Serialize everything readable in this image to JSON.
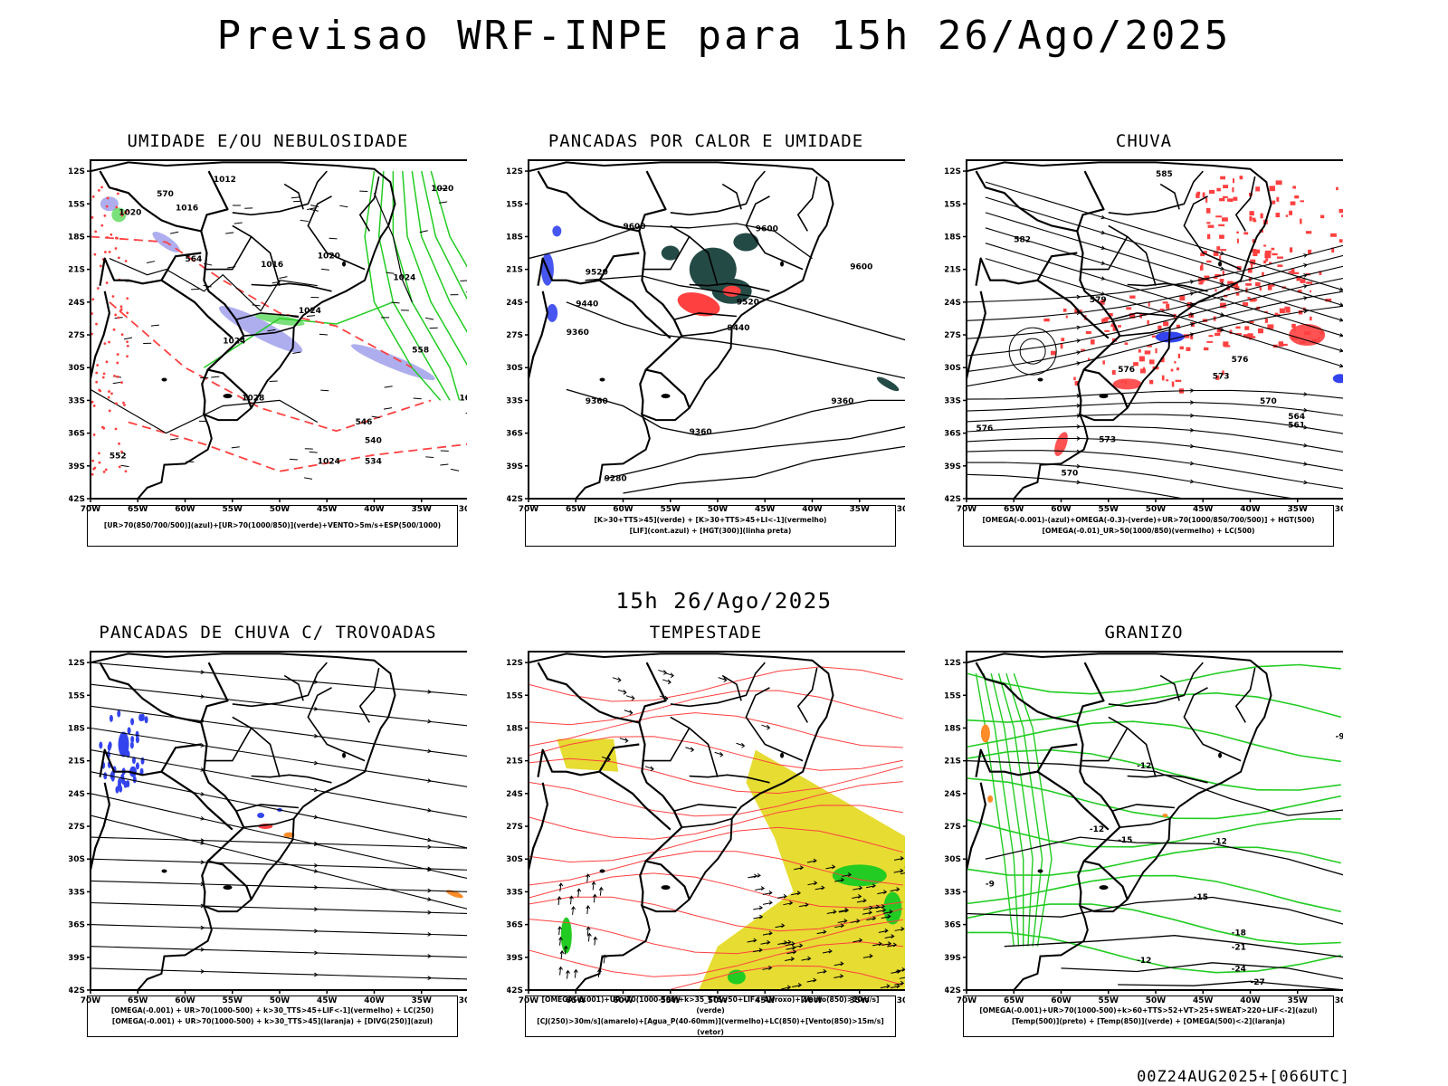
{
  "header": {
    "title": "Previsao WRF-INPE  para 15h 26/Ago/2025"
  },
  "mid_title": "15h 26/Ago/2025",
  "footer": "00Z24AUG2025+[066UTC]",
  "axes": {
    "lat_ticks": [
      "12S",
      "15S",
      "18S",
      "21S",
      "24S",
      "27S",
      "30S",
      "33S",
      "36S",
      "39S",
      "42S"
    ],
    "lon_ticks": [
      "70W",
      "65W",
      "60W",
      "55W",
      "50W",
      "45W",
      "40W",
      "35W",
      "30W"
    ]
  },
  "colors": {
    "red": "#ff4040",
    "green": "#22cc22",
    "blue": "#3344ee",
    "lavender": "#aaaaee",
    "yellow": "#e6dc32",
    "orange": "#ff8c28",
    "darkteal": "#244a46",
    "black": "#000000"
  },
  "panels": [
    {
      "title": "UMIDADE E/OU NEBULOSIDADE",
      "legend": [
        "[UR>70(850/700/500)](azul)+[UR>70(1000/850)](verde)+VENTO>5m/s+ESP(500/1000)"
      ],
      "labels": [
        "1016",
        "1012",
        "1020",
        "1024",
        "1028",
        "570",
        "564",
        "558",
        "552",
        "546",
        "540",
        "534"
      ]
    },
    {
      "title": "PANCADAS POR CALOR E UMIDADE",
      "legend": [
        "[K>30+TTS>45](verde) + [K>30+TTS>45+LI<-1](vermelho)",
        "[LIF](cont.azul) + [HGT(300)](linha preta)"
      ],
      "labels": [
        "9600",
        "9520",
        "9440",
        "9360",
        "9280"
      ]
    },
    {
      "title": "CHUVA",
      "legend": [
        "[OMEGA(-0.001)-(azul)+OMEGA(-0.3)-(verde)+UR>70(1000/850/700/500)] + HGT(500)",
        "[OMEGA(-0.01)_UR>50(1000/850)(vermelho) + LC(500)"
      ],
      "labels": [
        "585",
        "582",
        "579",
        "576",
        "573",
        "570",
        "564",
        "561"
      ]
    },
    {
      "title": "PANCADAS DE CHUVA C/ TROVOADAS",
      "legend": [
        "[OMEGA(-0.001) + UR>70(1000-500) + k>30_TTS>45+LIF<-1](vermelho) + LC(250)",
        "[OMEGA(-0.001) + UR>70(1000-500) + k>30_TTS>45](laranja) + [DIVG(250)](azul)"
      ],
      "labels": []
    },
    {
      "title": "TEMPESTADE",
      "legend": [
        "[OMEGA(-0.001)+UR>70(1000-500)+k>35_TTS>50+LIF<-4](roxo)+[Vento(850)>10m/s](verde)",
        "[CJ(250)>30m/s](amarelo)+[Agua_P(40-60mm)](vermelho)+LC(850)+[Vento(850)>15m/s](vetor)"
      ],
      "labels": []
    },
    {
      "title": "GRANIZO",
      "legend": [
        "[OMEGA(-0.001)+UR>70(1000-500)+k>60+TTS>52+VT>25+SWEAT>220+LIF<-2](azul)",
        "[Temp(500)](preto) + [Temp(850)](verde) + [OMEGA(500)<-2](laranja)"
      ],
      "labels": [
        "-12",
        "-15",
        "-18",
        "-21",
        "-24",
        "-27",
        "-9"
      ]
    }
  ]
}
